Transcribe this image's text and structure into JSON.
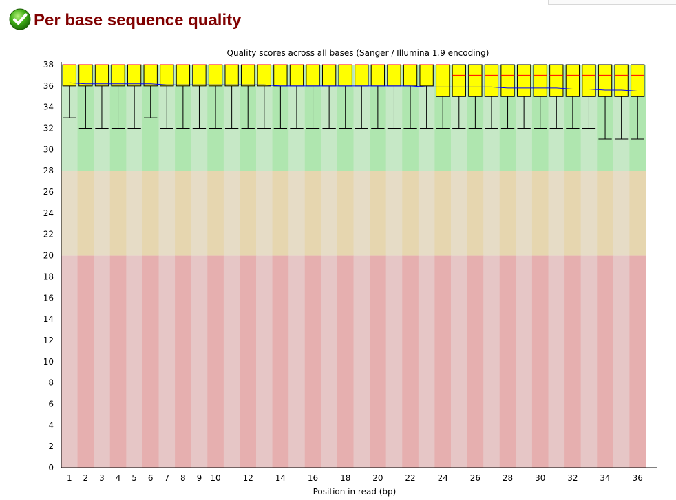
{
  "page": {
    "title": "Per base sequence quality",
    "status_icon": "check-circle-icon",
    "status": "pass"
  },
  "colors": {
    "title": "#800000",
    "box_fill": "#ffff00",
    "box_stroke": "#000000",
    "median": "#ff0000",
    "mean_line": "#0000ff",
    "good_band": [
      "#c6e8c6",
      "#afe6af"
    ],
    "warn_band": [
      "#e6dcc6",
      "#e6d6af"
    ],
    "bad_band": [
      "#e6c6c6",
      "#e6afaf"
    ]
  },
  "chart_data": {
    "type": "box",
    "title": "Quality scores across all bases (Sanger / Illumina 1.9 encoding)",
    "xlabel": "Position in read (bp)",
    "ylabel": "",
    "ylim": [
      0,
      38
    ],
    "yticks": [
      0,
      2,
      4,
      6,
      8,
      10,
      12,
      14,
      16,
      18,
      20,
      22,
      24,
      26,
      28,
      30,
      32,
      34,
      36,
      38
    ],
    "x_tick_labels": [
      "1",
      "2",
      "3",
      "4",
      "5",
      "6",
      "7",
      "8",
      "9",
      "10",
      "12",
      "14",
      "16",
      "18",
      "20",
      "22",
      "24",
      "26",
      "28",
      "30",
      "32",
      "34",
      "36"
    ],
    "categories": [
      "1",
      "2",
      "3",
      "4",
      "5",
      "6",
      "7",
      "8",
      "9",
      "10",
      "11",
      "12",
      "13",
      "14",
      "15",
      "16",
      "17",
      "18",
      "19",
      "20",
      "21",
      "22",
      "23",
      "24",
      "25",
      "26",
      "27",
      "28",
      "29",
      "30",
      "31",
      "32",
      "33",
      "34",
      "35",
      "36"
    ],
    "quality_bands": [
      {
        "name": "good",
        "from": 28,
        "to": 38
      },
      {
        "name": "reasonable",
        "from": 20,
        "to": 28
      },
      {
        "name": "poor",
        "from": 0,
        "to": 20
      }
    ],
    "boxes": [
      {
        "q1": 36,
        "median": 38,
        "q3": 38,
        "lower_whisker": 33,
        "upper_whisker": 38,
        "mean": 36.3
      },
      {
        "q1": 36,
        "median": 38,
        "q3": 38,
        "lower_whisker": 32,
        "upper_whisker": 38,
        "mean": 36.2
      },
      {
        "q1": 36,
        "median": 38,
        "q3": 38,
        "lower_whisker": 32,
        "upper_whisker": 38,
        "mean": 36.2
      },
      {
        "q1": 36,
        "median": 38,
        "q3": 38,
        "lower_whisker": 32,
        "upper_whisker": 38,
        "mean": 36.2
      },
      {
        "q1": 36,
        "median": 38,
        "q3": 38,
        "lower_whisker": 32,
        "upper_whisker": 38,
        "mean": 36.2
      },
      {
        "q1": 36,
        "median": 38,
        "q3": 38,
        "lower_whisker": 33,
        "upper_whisker": 38,
        "mean": 36.2
      },
      {
        "q1": 36,
        "median": 38,
        "q3": 38,
        "lower_whisker": 32,
        "upper_whisker": 38,
        "mean": 36.1
      },
      {
        "q1": 36,
        "median": 38,
        "q3": 38,
        "lower_whisker": 32,
        "upper_whisker": 38,
        "mean": 36.1
      },
      {
        "q1": 36,
        "median": 38,
        "q3": 38,
        "lower_whisker": 32,
        "upper_whisker": 38,
        "mean": 36.1
      },
      {
        "q1": 36,
        "median": 38,
        "q3": 38,
        "lower_whisker": 32,
        "upper_whisker": 38,
        "mean": 36.1
      },
      {
        "q1": 36,
        "median": 38,
        "q3": 38,
        "lower_whisker": 32,
        "upper_whisker": 38,
        "mean": 36.1
      },
      {
        "q1": 36,
        "median": 38,
        "q3": 38,
        "lower_whisker": 32,
        "upper_whisker": 38,
        "mean": 36.1
      },
      {
        "q1": 36,
        "median": 38,
        "q3": 38,
        "lower_whisker": 32,
        "upper_whisker": 38,
        "mean": 36.1
      },
      {
        "q1": 36,
        "median": 38,
        "q3": 38,
        "lower_whisker": 32,
        "upper_whisker": 38,
        "mean": 36.0
      },
      {
        "q1": 36,
        "median": 38,
        "q3": 38,
        "lower_whisker": 32,
        "upper_whisker": 38,
        "mean": 36.0
      },
      {
        "q1": 36,
        "median": 38,
        "q3": 38,
        "lower_whisker": 32,
        "upper_whisker": 38,
        "mean": 36.0
      },
      {
        "q1": 36,
        "median": 38,
        "q3": 38,
        "lower_whisker": 32,
        "upper_whisker": 38,
        "mean": 36.0
      },
      {
        "q1": 36,
        "median": 38,
        "q3": 38,
        "lower_whisker": 32,
        "upper_whisker": 38,
        "mean": 36.0
      },
      {
        "q1": 36,
        "median": 38,
        "q3": 38,
        "lower_whisker": 32,
        "upper_whisker": 38,
        "mean": 36.0
      },
      {
        "q1": 36,
        "median": 38,
        "q3": 38,
        "lower_whisker": 32,
        "upper_whisker": 38,
        "mean": 36.0
      },
      {
        "q1": 36,
        "median": 38,
        "q3": 38,
        "lower_whisker": 32,
        "upper_whisker": 38,
        "mean": 36.0
      },
      {
        "q1": 36,
        "median": 38,
        "q3": 38,
        "lower_whisker": 32,
        "upper_whisker": 38,
        "mean": 36.0
      },
      {
        "q1": 36,
        "median": 38,
        "q3": 38,
        "lower_whisker": 32,
        "upper_whisker": 38,
        "mean": 35.9
      },
      {
        "q1": 35,
        "median": 38,
        "q3": 38,
        "lower_whisker": 32,
        "upper_whisker": 38,
        "mean": 35.9
      },
      {
        "q1": 35,
        "median": 37,
        "q3": 38,
        "lower_whisker": 32,
        "upper_whisker": 38,
        "mean": 35.9
      },
      {
        "q1": 35,
        "median": 37,
        "q3": 38,
        "lower_whisker": 32,
        "upper_whisker": 38,
        "mean": 35.9
      },
      {
        "q1": 35,
        "median": 37,
        "q3": 38,
        "lower_whisker": 32,
        "upper_whisker": 38,
        "mean": 35.9
      },
      {
        "q1": 35,
        "median": 37,
        "q3": 38,
        "lower_whisker": 32,
        "upper_whisker": 38,
        "mean": 35.8
      },
      {
        "q1": 35,
        "median": 37,
        "q3": 38,
        "lower_whisker": 32,
        "upper_whisker": 38,
        "mean": 35.8
      },
      {
        "q1": 35,
        "median": 37,
        "q3": 38,
        "lower_whisker": 32,
        "upper_whisker": 38,
        "mean": 35.8
      },
      {
        "q1": 35,
        "median": 37,
        "q3": 38,
        "lower_whisker": 32,
        "upper_whisker": 38,
        "mean": 35.8
      },
      {
        "q1": 35,
        "median": 37,
        "q3": 38,
        "lower_whisker": 32,
        "upper_whisker": 38,
        "mean": 35.7
      },
      {
        "q1": 35,
        "median": 37,
        "q3": 38,
        "lower_whisker": 32,
        "upper_whisker": 38,
        "mean": 35.7
      },
      {
        "q1": 35,
        "median": 37,
        "q3": 38,
        "lower_whisker": 31,
        "upper_whisker": 38,
        "mean": 35.6
      },
      {
        "q1": 35,
        "median": 37,
        "q3": 38,
        "lower_whisker": 31,
        "upper_whisker": 38,
        "mean": 35.6
      },
      {
        "q1": 35,
        "median": 37,
        "q3": 38,
        "lower_whisker": 31,
        "upper_whisker": 38,
        "mean": 35.5
      }
    ]
  }
}
